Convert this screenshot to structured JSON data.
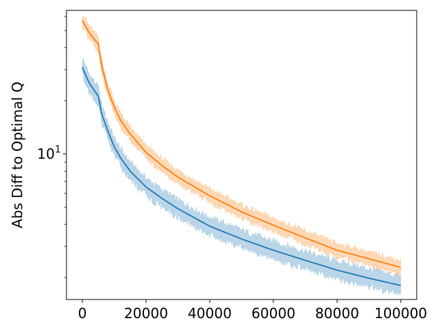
{
  "chart_data": {
    "type": "line",
    "title": "",
    "xlabel": "",
    "ylabel": "Abs Diff to Optimal Q",
    "yscale": "log",
    "xlim": [
      -5000,
      105000
    ],
    "ylim": [
      1.5,
      65
    ],
    "grid": false,
    "legend": "none",
    "x_ticks": [
      {
        "value": 0,
        "label": "0"
      },
      {
        "value": 20000,
        "label": "20000"
      },
      {
        "value": 40000,
        "label": "40000"
      },
      {
        "value": 60000,
        "label": "60000"
      },
      {
        "value": 80000,
        "label": "80000"
      },
      {
        "value": 100000,
        "label": "100000"
      }
    ],
    "y_ticks": [
      {
        "value": 10,
        "label_base": "10",
        "label_exp": "1"
      }
    ],
    "series": [
      {
        "color": "#1f77b4",
        "band_color": "#1f77b4",
        "x": [
          0,
          2000,
          4000,
          5000,
          6000,
          8000,
          10000,
          12000,
          15000,
          20000,
          25000,
          30000,
          40000,
          50000,
          60000,
          70000,
          80000,
          90000,
          100000
        ],
        "values": [
          31.0,
          25.5,
          22.5,
          21.3,
          17.0,
          13.5,
          11.0,
          9.5,
          8.0,
          6.5,
          5.6,
          4.9,
          3.9,
          3.3,
          2.85,
          2.5,
          2.2,
          1.98,
          1.8
        ],
        "band": 0.13
      },
      {
        "color": "#ff7f0e",
        "band_color": "#ff7f0e",
        "x": [
          0,
          2000,
          4000,
          5000,
          6000,
          8000,
          10000,
          12000,
          15000,
          20000,
          25000,
          30000,
          40000,
          50000,
          60000,
          70000,
          80000,
          90000,
          100000
        ],
        "values": [
          57.0,
          49.0,
          44.0,
          42.0,
          32.0,
          23.0,
          18.5,
          15.5,
          13.0,
          10.2,
          8.6,
          7.4,
          5.8,
          4.7,
          3.95,
          3.35,
          2.85,
          2.55,
          2.28
        ],
        "band": 0.1
      }
    ]
  }
}
